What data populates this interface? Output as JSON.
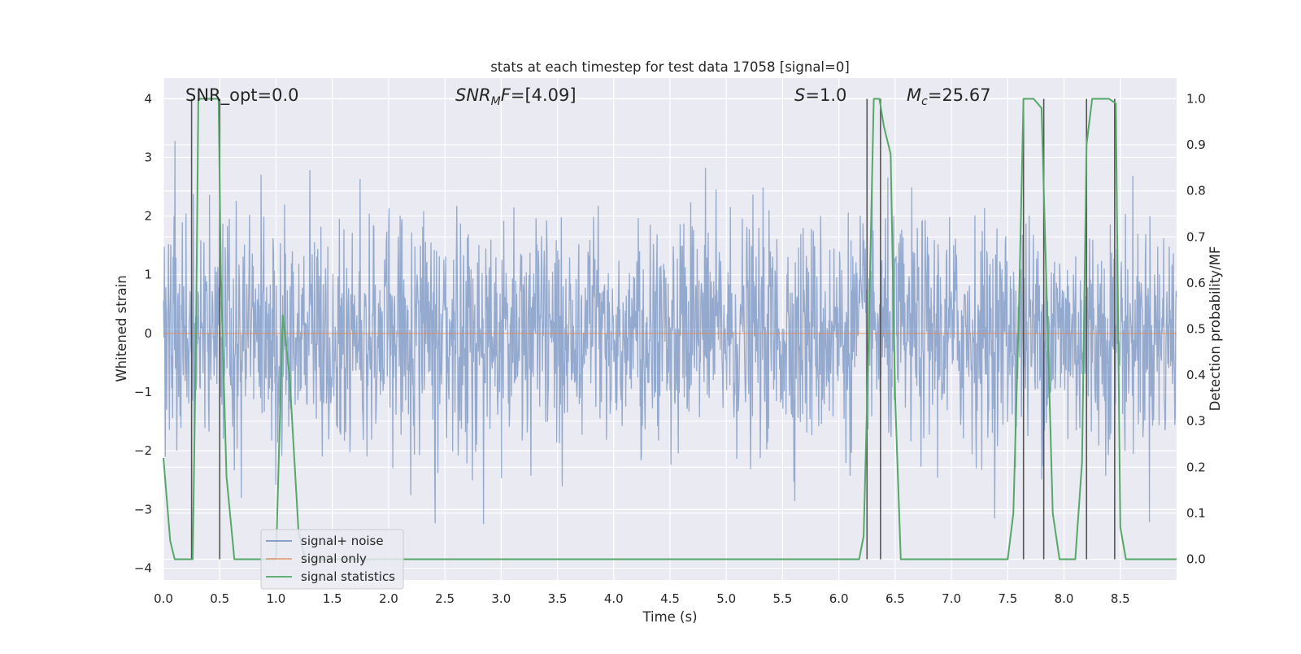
{
  "chart_data": {
    "type": "line",
    "title": "stats at each timestep for test data 17058 [signal=0]",
    "xlabel": "Time (s)",
    "ylabel_left": "Whitened strain",
    "ylabel_right": "Detection probability/MF",
    "xlim": [
      0.0,
      9.0
    ],
    "ylim_left": [
      -4.2,
      4.35
    ],
    "ylim_right": [
      -0.045,
      1.045
    ],
    "x_ticks": [
      "0.0",
      "0.5",
      "1.0",
      "1.5",
      "2.0",
      "2.5",
      "3.0",
      "3.5",
      "4.0",
      "4.5",
      "5.0",
      "5.5",
      "6.0",
      "6.5",
      "7.0",
      "7.5",
      "8.0",
      "8.5"
    ],
    "y_ticks_left": [
      "−4",
      "−3",
      "−2",
      "−1",
      "0",
      "1",
      "2",
      "3",
      "4"
    ],
    "y_ticks_right": [
      "0.0",
      "0.1",
      "0.2",
      "0.3",
      "0.4",
      "0.5",
      "0.6",
      "0.7",
      "0.8",
      "0.9",
      "1.0"
    ],
    "grid": true,
    "legend_position": "lower-left",
    "annotations": [
      {
        "prefix": "SNR_opt=",
        "sub": "",
        "value": "0.0"
      },
      {
        "prefix": "SNR",
        "sub": "M",
        "suffix": "F",
        "value": "[4.09]"
      },
      {
        "prefix": "S",
        "sub": "",
        "value": "1.0"
      },
      {
        "prefix": "M",
        "sub": "c",
        "value": "25.67"
      }
    ],
    "series": [
      {
        "name": "signal+ noise",
        "color": "#4c72b0",
        "style": "noise band, approx. range -3.7 to 3.4"
      },
      {
        "name": "signal only",
        "color": "#dd8452",
        "values_note": "constant 0"
      },
      {
        "name": "signal statistics",
        "color": "#55a868",
        "x": [
          0.0,
          0.06,
          0.1,
          0.18,
          0.24,
          0.26,
          0.29,
          0.31,
          0.36,
          0.42,
          0.49,
          0.51,
          0.56,
          0.63,
          0.7,
          0.8,
          0.9,
          1.0,
          1.06,
          1.12,
          1.2,
          1.26,
          1.4,
          2.0,
          3.0,
          4.0,
          5.0,
          6.0,
          6.18,
          6.22,
          6.26,
          6.31,
          6.36,
          6.4,
          6.46,
          6.5,
          6.55,
          7.0,
          7.5,
          7.55,
          7.6,
          7.64,
          7.68,
          7.73,
          7.8,
          7.9,
          7.96,
          8.0,
          8.1,
          8.16,
          8.2,
          8.25,
          8.3,
          8.35,
          8.4,
          8.46,
          8.5,
          8.55,
          8.6,
          8.8,
          9.0
        ],
        "y": [
          0.22,
          0.04,
          0.0,
          0.0,
          0.0,
          0.0,
          0.5,
          1.0,
          1.0,
          1.0,
          1.0,
          0.62,
          0.18,
          0.0,
          0.0,
          0.0,
          0.0,
          0.0,
          0.53,
          0.4,
          0.06,
          0.0,
          0.0,
          0.0,
          0.0,
          0.0,
          0.0,
          0.0,
          0.0,
          0.05,
          0.43,
          1.0,
          1.0,
          0.94,
          0.88,
          0.35,
          0.0,
          0.0,
          0.0,
          0.1,
          0.55,
          1.0,
          1.0,
          1.0,
          0.98,
          0.1,
          0.0,
          0.0,
          0.0,
          0.21,
          0.9,
          1.0,
          1.0,
          1.0,
          1.0,
          0.99,
          0.07,
          0.0,
          0.0,
          0.0,
          0.0
        ]
      }
    ],
    "vertical_markers_x": [
      0.25,
      0.5,
      6.25,
      6.37,
      7.64,
      7.82,
      8.2,
      8.45
    ],
    "marker_color": "#555555"
  }
}
